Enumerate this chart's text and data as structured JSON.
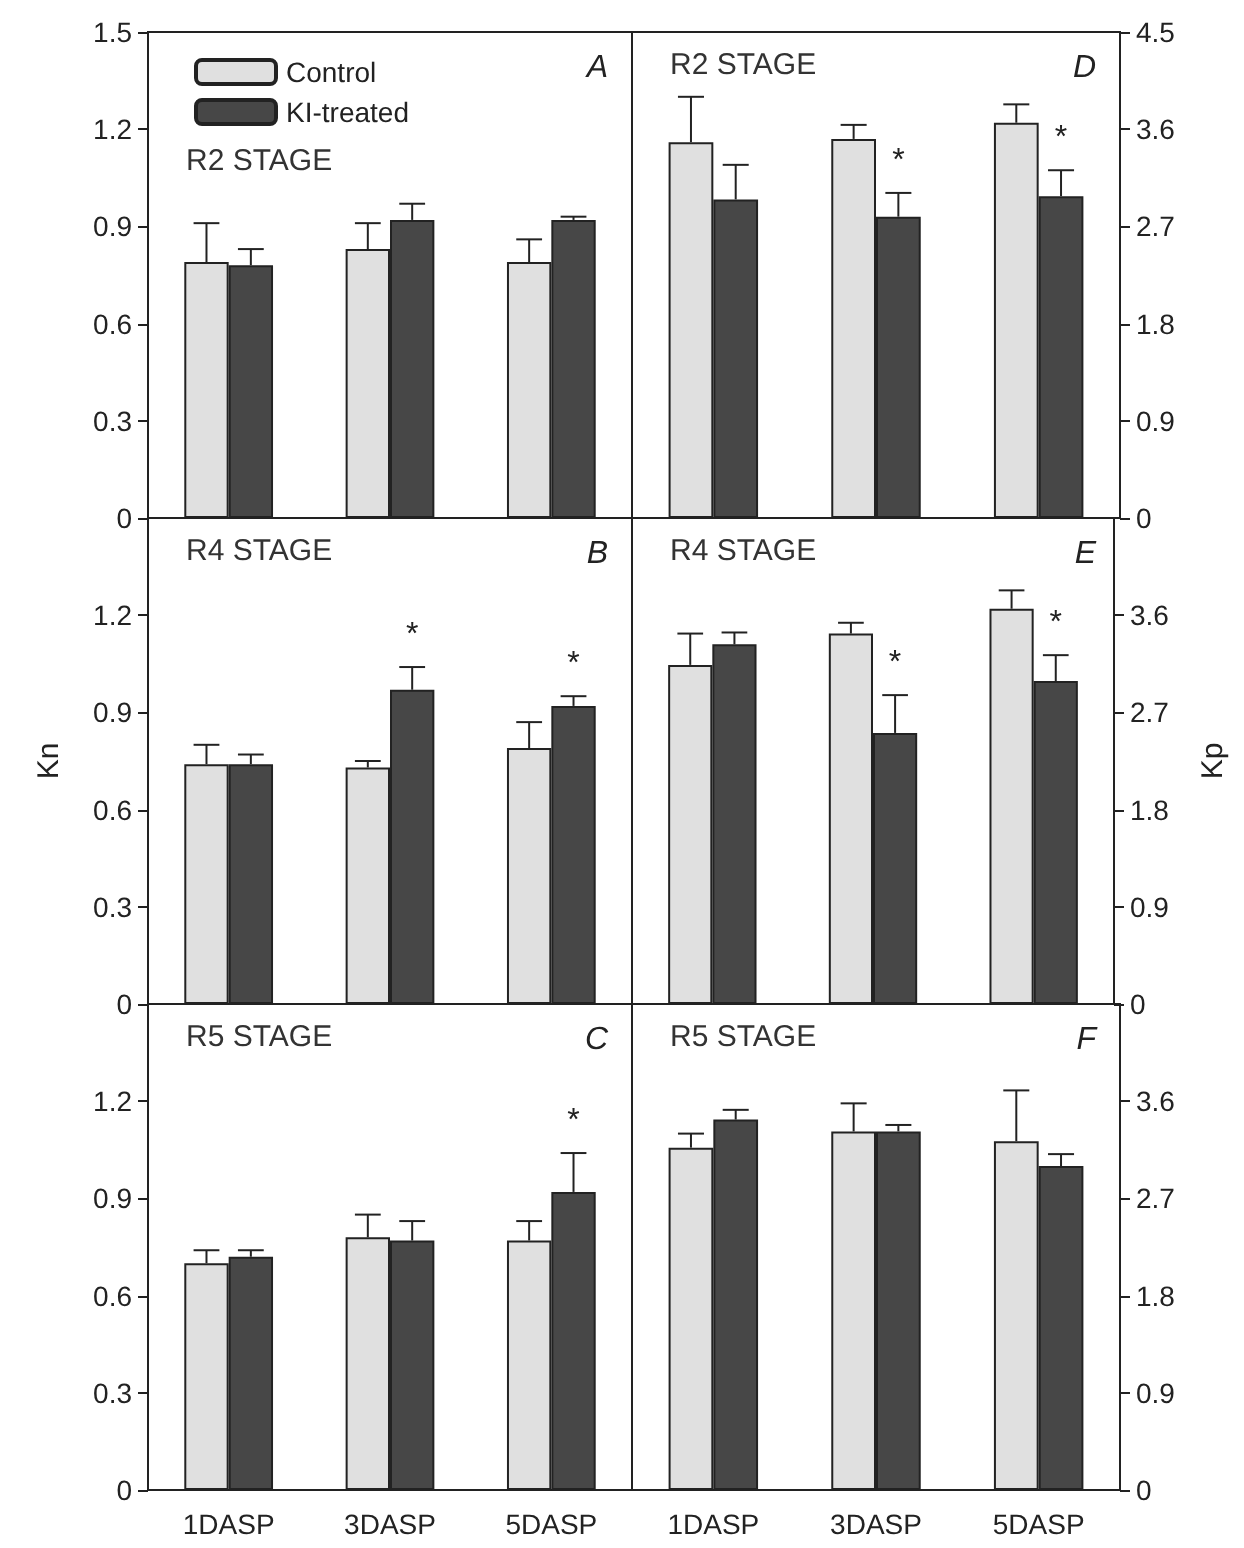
{
  "chart_data": [
    {
      "type": "bar",
      "title": "R2 STAGE",
      "categories": [
        "1DASP",
        "3DASP",
        "5DASP"
      ],
      "legend": "top left",
      "tick_labels": "y",
      "ylim": [
        0,
        1.5
      ],
      "yticks": [
        0,
        0.3,
        0.6,
        0.9,
        1.2,
        1.5
      ],
      "annotations": [
        "A"
      ],
      "series": [
        {
          "name": "Control",
          "color": "#e0e0e0",
          "values": [
            0.79,
            0.83,
            0.79
          ],
          "errors": [
            [
              0.79,
              0.91
            ],
            [
              0.83,
              0.91
            ],
            [
              0.79,
              0.86
            ]
          ]
        },
        {
          "name": "KI-treated",
          "color": "#474747",
          "values": [
            0.78,
            0.92,
            0.92
          ],
          "errors": [
            [
              0.78,
              0.83
            ],
            [
              0.92,
              0.97
            ],
            [
              0.92,
              0.93
            ]
          ]
        }
      ]
    },
    {
      "type": "bar",
      "title": "R4 STAGE",
      "categories": [
        "1DASP",
        "3DASP",
        "5DASP"
      ],
      "ylabel": "Kn",
      "tick_labels": "y",
      "ylim": [
        0,
        1.5
      ],
      "yticks": [
        0,
        0.3,
        0.6,
        0.9,
        1.2
      ],
      "annotations": [
        "B",
        {
          "text": "*",
          "x": "3DASP",
          "y": 0.97
        },
        {
          "text": "*",
          "x": "5DASP",
          "y": 0.92
        }
      ],
      "series": [
        {
          "color": "#e0e0e0",
          "values": [
            0.74,
            0.73,
            0.79
          ],
          "errors": [
            [
              0.74,
              0.8
            ],
            [
              0.73,
              0.75
            ],
            [
              0.79,
              0.87
            ]
          ]
        },
        {
          "color": "#474747",
          "values": [
            0.74,
            0.97,
            0.92
          ],
          "errors": [
            [
              0.74,
              0.77
            ],
            [
              0.97,
              1.04
            ],
            [
              0.92,
              0.95
            ]
          ]
        }
      ]
    },
    {
      "type": "bar",
      "title": "R5 STAGE",
      "categories": [
        "1DASP",
        "3DASP",
        "5DASP"
      ],
      "ylim": [
        0,
        1.5
      ],
      "yticks": [
        0,
        0.3,
        0.6,
        0.9,
        1.2
      ],
      "annotations": [
        "C",
        {
          "text": "*",
          "x": "5DASP",
          "y": 0.92
        }
      ],
      "series": [
        {
          "color": "#e0e0e0",
          "values": [
            0.7,
            0.78,
            0.77
          ],
          "errors": [
            [
              0.7,
              0.74
            ],
            [
              0.78,
              0.85
            ],
            [
              0.77,
              0.83
            ]
          ]
        },
        {
          "color": "#474747",
          "values": [
            0.72,
            0.77,
            0.92
          ],
          "errors": [
            [
              0.72,
              0.74
            ],
            [
              0.77,
              0.83
            ],
            [
              0.92,
              1.04
            ]
          ]
        }
      ]
    },
    {
      "type": "bar",
      "title": "R2 STAGE",
      "categories": [
        "1DASP",
        "3DASP",
        "5DASP"
      ],
      "tick_labels": "y",
      "ylim": [
        0,
        4.5
      ],
      "yticks": [
        0,
        0.9,
        1.8,
        2.7,
        3.6,
        4.5
      ],
      "annotations": [
        "D",
        {
          "text": "*",
          "x": "3DASP",
          "y": 2.79
        },
        {
          "text": "*",
          "x": "5DASP",
          "y": 2.98
        }
      ],
      "series": [
        {
          "color": "#e0e0e0",
          "values": [
            3.48,
            3.51,
            3.66
          ],
          "errors": [
            [
              3.48,
              3.9
            ],
            [
              3.51,
              3.64
            ],
            [
              3.66,
              3.83
            ]
          ]
        },
        {
          "color": "#474747",
          "values": [
            2.95,
            2.79,
            2.98
          ],
          "errors": [
            [
              2.95,
              3.27
            ],
            [
              2.79,
              3.01
            ],
            [
              2.98,
              3.22
            ]
          ]
        }
      ]
    },
    {
      "type": "bar",
      "title": "R4 STAGE",
      "categories": [
        "1DASP",
        "3DASP",
        "5DASP"
      ],
      "ylabel": "Kp",
      "tick_labels": "y",
      "ylim": [
        0,
        4.5
      ],
      "yticks": [
        0,
        0.9,
        1.8,
        2.7,
        3.6
      ],
      "annotations": [
        "E",
        {
          "text": "*",
          "x": "3DASP",
          "y": 2.51
        },
        {
          "text": "*",
          "x": "5DASP",
          "y": 2.99
        }
      ],
      "series": [
        {
          "color": "#e0e0e0",
          "values": [
            3.14,
            3.43,
            3.66
          ],
          "errors": [
            [
              3.14,
              3.43
            ],
            [
              3.43,
              3.53
            ],
            [
              3.66,
              3.83
            ]
          ]
        },
        {
          "color": "#474747",
          "values": [
            3.33,
            2.51,
            2.99
          ],
          "errors": [
            [
              3.33,
              3.44
            ],
            [
              2.51,
              2.86
            ],
            [
              2.99,
              3.23
            ]
          ]
        }
      ]
    },
    {
      "type": "bar",
      "title": "R5 STAGE",
      "categories": [
        "1DASP",
        "3DASP",
        "5DASP"
      ],
      "ylim": [
        0,
        4.5
      ],
      "yticks": [
        0,
        0.9,
        1.8,
        2.7,
        3.6
      ],
      "annotations": [
        "F"
      ],
      "series": [
        {
          "color": "#e0e0e0",
          "values": [
            3.17,
            3.32,
            3.23
          ],
          "errors": [
            [
              3.17,
              3.3
            ],
            [
              3.32,
              3.58
            ],
            [
              3.23,
              3.7
            ]
          ]
        },
        {
          "color": "#474747",
          "values": [
            3.43,
            3.32,
            3.0
          ],
          "errors": [
            [
              3.43,
              3.52
            ],
            [
              3.32,
              3.38
            ],
            [
              3.0,
              3.11
            ]
          ]
        }
      ]
    }
  ]
}
